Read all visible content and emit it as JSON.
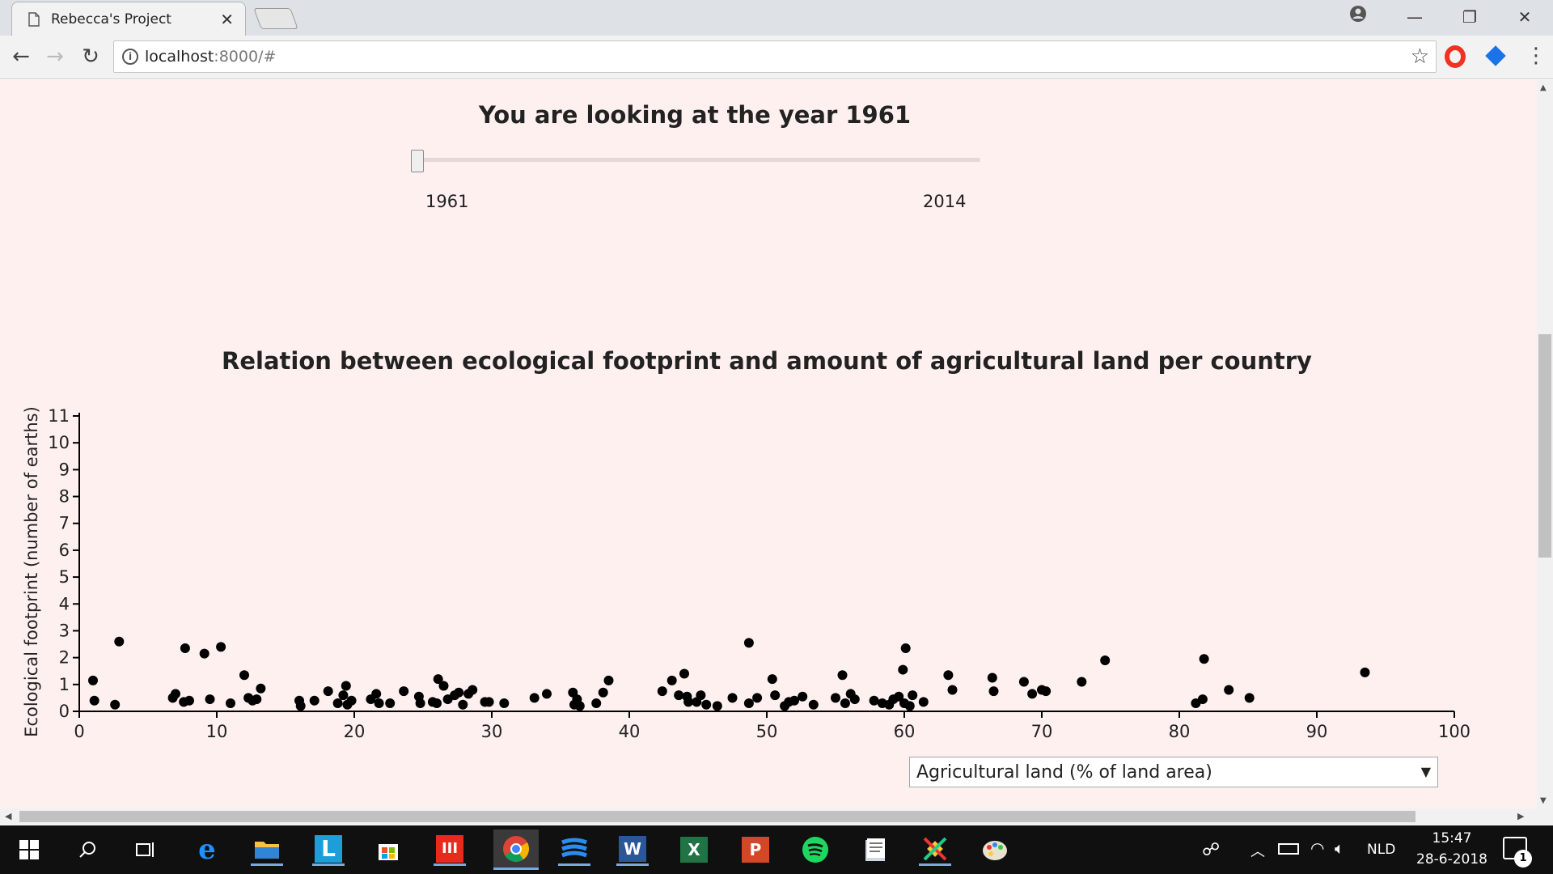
{
  "tab": {
    "title": "Rebecca's Project"
  },
  "omnibox": {
    "host": "localhost",
    "rest": ":8000/#"
  },
  "page": {
    "year_heading": "You are looking at the year 1961",
    "slider": {
      "min_label": "1961",
      "max_label": "2014",
      "value": 1961,
      "min": 1961,
      "max": 2014
    },
    "dropdown": {
      "value": "Agricultural land (% of land area)"
    }
  },
  "chart_data": {
    "type": "scatter",
    "title": "Relation between ecological footprint and amount of agricultural land per country",
    "xlabel": "",
    "ylabel": "Ecological footprint (number of earths)",
    "xlim": [
      0,
      100
    ],
    "ylim": [
      0,
      11
    ],
    "x_ticks": [
      "0",
      "10",
      "20",
      "30",
      "40",
      "50",
      "60",
      "70",
      "80",
      "90",
      "100"
    ],
    "y_ticks": [
      "0",
      "1",
      "2",
      "3",
      "4",
      "5",
      "6",
      "7",
      "8",
      "9",
      "10",
      "11"
    ],
    "grid": false,
    "point_color": "#000000",
    "points": [
      [
        1.0,
        1.15
      ],
      [
        1.1,
        0.4
      ],
      [
        2.6,
        0.25
      ],
      [
        2.9,
        2.6
      ],
      [
        6.8,
        0.5
      ],
      [
        7.0,
        0.65
      ],
      [
        7.6,
        0.35
      ],
      [
        7.7,
        2.35
      ],
      [
        8.0,
        0.4
      ],
      [
        9.1,
        2.15
      ],
      [
        9.5,
        0.45
      ],
      [
        10.3,
        2.4
      ],
      [
        11.0,
        0.3
      ],
      [
        12.0,
        1.35
      ],
      [
        12.3,
        0.5
      ],
      [
        12.6,
        0.4
      ],
      [
        12.9,
        0.45
      ],
      [
        13.2,
        0.85
      ],
      [
        16.0,
        0.4
      ],
      [
        16.1,
        0.2
      ],
      [
        17.1,
        0.4
      ],
      [
        18.1,
        0.75
      ],
      [
        18.8,
        0.3
      ],
      [
        19.2,
        0.6
      ],
      [
        19.4,
        0.95
      ],
      [
        19.5,
        0.25
      ],
      [
        19.8,
        0.4
      ],
      [
        21.2,
        0.45
      ],
      [
        21.6,
        0.65
      ],
      [
        21.8,
        0.3
      ],
      [
        22.6,
        0.3
      ],
      [
        23.6,
        0.75
      ],
      [
        24.7,
        0.55
      ],
      [
        24.8,
        0.3
      ],
      [
        25.7,
        0.35
      ],
      [
        26.0,
        0.3
      ],
      [
        26.1,
        1.2
      ],
      [
        26.5,
        0.95
      ],
      [
        26.8,
        0.45
      ],
      [
        27.3,
        0.6
      ],
      [
        27.6,
        0.7
      ],
      [
        27.9,
        0.25
      ],
      [
        28.3,
        0.65
      ],
      [
        28.6,
        0.8
      ],
      [
        29.5,
        0.35
      ],
      [
        29.8,
        0.35
      ],
      [
        30.9,
        0.3
      ],
      [
        33.1,
        0.5
      ],
      [
        34.0,
        0.65
      ],
      [
        35.9,
        0.7
      ],
      [
        36.0,
        0.25
      ],
      [
        36.2,
        0.45
      ],
      [
        36.4,
        0.2
      ],
      [
        37.6,
        0.3
      ],
      [
        38.1,
        0.7
      ],
      [
        38.5,
        1.15
      ],
      [
        42.4,
        0.75
      ],
      [
        43.1,
        1.15
      ],
      [
        43.6,
        0.6
      ],
      [
        44.0,
        1.4
      ],
      [
        44.2,
        0.55
      ],
      [
        44.3,
        0.35
      ],
      [
        44.9,
        0.35
      ],
      [
        45.2,
        0.6
      ],
      [
        45.6,
        0.25
      ],
      [
        46.4,
        0.2
      ],
      [
        47.5,
        0.5
      ],
      [
        48.7,
        2.55
      ],
      [
        48.7,
        0.3
      ],
      [
        49.3,
        0.5
      ],
      [
        50.4,
        1.2
      ],
      [
        50.6,
        0.6
      ],
      [
        51.3,
        0.2
      ],
      [
        51.6,
        0.35
      ],
      [
        52.0,
        0.4
      ],
      [
        52.6,
        0.55
      ],
      [
        53.4,
        0.25
      ],
      [
        55.0,
        0.5
      ],
      [
        55.5,
        1.35
      ],
      [
        55.7,
        0.3
      ],
      [
        56.1,
        0.65
      ],
      [
        56.4,
        0.45
      ],
      [
        57.8,
        0.4
      ],
      [
        58.4,
        0.3
      ],
      [
        58.9,
        0.25
      ],
      [
        59.2,
        0.45
      ],
      [
        59.6,
        0.55
      ],
      [
        59.9,
        1.55
      ],
      [
        60.0,
        0.3
      ],
      [
        60.1,
        2.35
      ],
      [
        60.4,
        0.2
      ],
      [
        60.6,
        0.6
      ],
      [
        61.4,
        0.35
      ],
      [
        63.2,
        1.35
      ],
      [
        63.5,
        0.8
      ],
      [
        66.4,
        1.25
      ],
      [
        66.5,
        0.75
      ],
      [
        68.7,
        1.1
      ],
      [
        69.3,
        0.65
      ],
      [
        70.0,
        0.8
      ],
      [
        70.3,
        0.75
      ],
      [
        72.9,
        1.1
      ],
      [
        74.6,
        1.9
      ],
      [
        81.2,
        0.3
      ],
      [
        81.7,
        0.45
      ],
      [
        81.8,
        1.95
      ],
      [
        83.6,
        0.8
      ],
      [
        85.1,
        0.5
      ],
      [
        93.5,
        1.45
      ]
    ]
  },
  "taskbar": {
    "apps": [
      "windows-start-icon",
      "search-icon",
      "task-view-icon",
      "edge-icon",
      "file-explorer-icon",
      "l-app-icon",
      "store-icon",
      "red-app-icon",
      "chrome-icon",
      "stripes-app-icon",
      "word-icon",
      "excel-icon",
      "powerpoint-icon",
      "spotify-icon",
      "document-app-icon",
      "tools-app-icon",
      "paint-icon"
    ],
    "lang": "NLD",
    "time": "15:47",
    "date": "28-6-2018",
    "notifications": "1"
  }
}
